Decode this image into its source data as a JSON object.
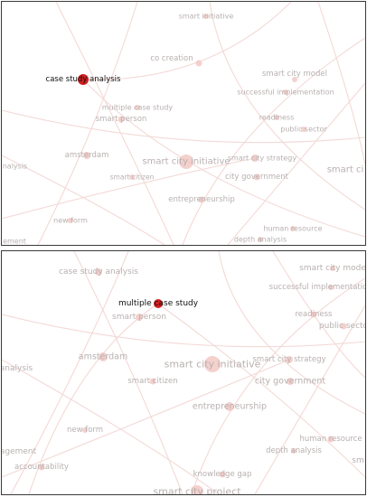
{
  "colors": {
    "edge": "#f3d9d6",
    "node": "#f0c2bc",
    "highlight_node": "#d01f1f",
    "label": "#b3aaaa",
    "highlight_label": "#111111",
    "border": "#3a3a3a"
  },
  "panels": [
    {
      "id": "top",
      "highlighted": "case study analysis",
      "nodes": [
        {
          "label": "smart initiative"
        },
        {
          "label": "co creation"
        },
        {
          "label": "smart city model"
        },
        {
          "label": "case study analysis"
        },
        {
          "label": "successful implementation"
        },
        {
          "label": "multiple case study"
        },
        {
          "label": "smart person"
        },
        {
          "label": "readiness"
        },
        {
          "label": "public sector"
        },
        {
          "label": "amsterdam"
        },
        {
          "label": "smart city strategy"
        },
        {
          "label": "analysis"
        },
        {
          "label": "smart city initiative"
        },
        {
          "label": "smart ci"
        },
        {
          "label": "smart citizen"
        },
        {
          "label": "city government"
        },
        {
          "label": "entrepreneurship"
        },
        {
          "label": "new form"
        },
        {
          "label": "human resource"
        },
        {
          "label": "ement"
        },
        {
          "label": "depth analysis"
        }
      ]
    },
    {
      "id": "bottom",
      "highlighted": "multiple case study",
      "nodes": [
        {
          "label": "case study analysis"
        },
        {
          "label": "smart city mode"
        },
        {
          "label": "successful implementatio"
        },
        {
          "label": "multiple case study"
        },
        {
          "label": "smart person"
        },
        {
          "label": "readiness"
        },
        {
          "label": "public secto"
        },
        {
          "label": "amsterdam"
        },
        {
          "label": "smart city initiative"
        },
        {
          "label": "smart city strategy"
        },
        {
          "label": "analysis"
        },
        {
          "label": "smart citizen"
        },
        {
          "label": "city government"
        },
        {
          "label": "entrepreneurship"
        },
        {
          "label": "new form"
        },
        {
          "label": "human resource"
        },
        {
          "label": "agement"
        },
        {
          "label": "depth analysis"
        },
        {
          "label": "accountability"
        },
        {
          "label": "sm"
        },
        {
          "label": "knowledge gap"
        },
        {
          "label": "smart city project"
        }
      ]
    }
  ]
}
